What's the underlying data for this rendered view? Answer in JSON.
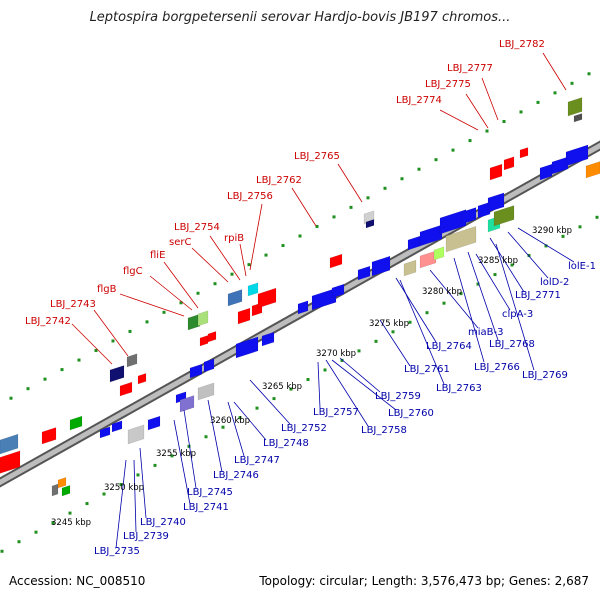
{
  "title": "Leptospira borgpetersenii serovar Hardjo-bovis JB197 chromos...",
  "footer": {
    "accession": "Accession: NC_008510",
    "summary": "Topology: circular; Length: 3,576,473 bp; Genes: 2,687"
  },
  "colors": {
    "forward_label": "#cc0000",
    "reverse_label": "#0000aa",
    "backbone": "#8c8c8c",
    "tick_dots": "#1f8f1f",
    "gene_red": "#ff0000",
    "gene_blue": "#1010ee"
  },
  "scale_labels": [
    "3245 kbp",
    "3250 kbp",
    "3255 kbp",
    "3260 kbp",
    "3265 kbp",
    "3270 kbp",
    "3275 kbp",
    "3280 kbp",
    "3285 kbp",
    "3290 kbp"
  ],
  "forward_gene_labels": [
    "LBJ_2742",
    "LBJ_2743",
    "flgB",
    "flgC",
    "fliE",
    "serC",
    "LBJ_2754",
    "rpiB",
    "LBJ_2756",
    "LBJ_2762",
    "LBJ_2765",
    "LBJ_2774",
    "LBJ_2775",
    "LBJ_2777",
    "LBJ_2782"
  ],
  "reverse_gene_labels": [
    "LBJ_2735",
    "LBJ_2739",
    "LBJ_2740",
    "LBJ_2741",
    "LBJ_2745",
    "LBJ_2746",
    "LBJ_2747",
    "LBJ_2748",
    "LBJ_2752",
    "LBJ_2757",
    "LBJ_2758",
    "LBJ_2759",
    "LBJ_2760",
    "LBJ_2761",
    "LBJ_2763",
    "LBJ_2764",
    "miaB-3",
    "LBJ_2766",
    "LBJ_2768",
    "LBJ_2769",
    "clpA-3",
    "LBJ_2771",
    "lolD-2",
    "lolE-1"
  ]
}
